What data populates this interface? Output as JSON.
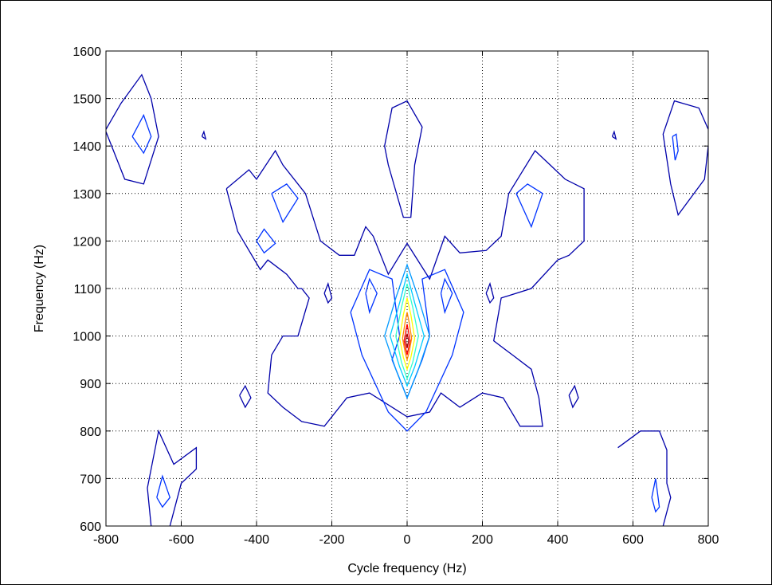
{
  "chart_data": {
    "type": "contour",
    "title": "",
    "xlabel": "Cycle frequency (Hz)",
    "ylabel": "Frequency (Hz)",
    "xlim": [
      -800,
      800
    ],
    "ylim": [
      600,
      1600
    ],
    "xticks": [
      "-800",
      "-600",
      "-400",
      "-200",
      "0",
      "200",
      "400",
      "600",
      "800"
    ],
    "yticks": [
      "600",
      "700",
      "800",
      "900",
      "1000",
      "1100",
      "1200",
      "1300",
      "1400",
      "1500",
      "1600"
    ],
    "grid": true,
    "colors": {
      "level1": "#0000aa",
      "level2": "#0033ff",
      "level3": "#0099ff",
      "level4": "#00ccff",
      "level5": "#33ffcc",
      "level6": "#ffff00",
      "level7": "#ff8800",
      "level8": "#ff0000",
      "level9": "#aa0000"
    },
    "contours": [
      {
        "level": 1,
        "color": "level1",
        "points": [
          [
            -800,
            1435
          ],
          [
            -760,
            1490
          ],
          [
            -705,
            1550
          ],
          [
            -680,
            1500
          ],
          [
            -660,
            1420
          ],
          [
            -700,
            1320
          ],
          [
            -750,
            1330
          ],
          [
            -800,
            1430
          ]
        ]
      },
      {
        "level": 2,
        "color": "level2",
        "points": [
          [
            -730,
            1420
          ],
          [
            -700,
            1465
          ],
          [
            -680,
            1420
          ],
          [
            -700,
            1385
          ],
          [
            -730,
            1420
          ]
        ]
      },
      {
        "level": 1,
        "color": "level1",
        "points": [
          [
            -545,
            1420
          ],
          [
            -540,
            1430
          ],
          [
            -535,
            1415
          ],
          [
            -545,
            1420
          ]
        ]
      },
      {
        "level": 1,
        "color": "level1",
        "points": [
          [
            545,
            1420
          ],
          [
            550,
            1430
          ],
          [
            555,
            1415
          ],
          [
            545,
            1420
          ]
        ]
      },
      {
        "level": 1,
        "color": "level1",
        "points": [
          [
            800,
            1435
          ],
          [
            775,
            1480
          ],
          [
            710,
            1495
          ],
          [
            680,
            1425
          ],
          [
            700,
            1320
          ],
          [
            720,
            1255
          ],
          [
            790,
            1330
          ],
          [
            800,
            1400
          ]
        ]
      },
      {
        "level": 2,
        "color": "level2",
        "points": [
          [
            705,
            1420
          ],
          [
            715,
            1425
          ],
          [
            720,
            1390
          ],
          [
            712,
            1370
          ],
          [
            705,
            1420
          ]
        ]
      },
      {
        "level": 1,
        "color": "level1",
        "points": [
          [
            -50,
            1360
          ],
          [
            -60,
            1400
          ],
          [
            -40,
            1480
          ],
          [
            0,
            1495
          ],
          [
            40,
            1440
          ],
          [
            20,
            1360
          ],
          [
            10,
            1250
          ],
          [
            -10,
            1250
          ],
          [
            -50,
            1360
          ]
        ]
      },
      {
        "level": 1,
        "color": "level1",
        "points": [
          [
            -480,
            1310
          ],
          [
            -420,
            1350
          ],
          [
            -400,
            1330
          ],
          [
            -350,
            1390
          ],
          [
            -330,
            1360
          ],
          [
            -270,
            1300
          ],
          [
            -230,
            1200
          ],
          [
            -180,
            1170
          ],
          [
            -140,
            1170
          ],
          [
            -110,
            1230
          ],
          [
            -90,
            1210
          ],
          [
            -50,
            1130
          ],
          [
            0,
            1195
          ],
          [
            60,
            1120
          ],
          [
            100,
            1210
          ],
          [
            140,
            1175
          ],
          [
            210,
            1180
          ],
          [
            250,
            1210
          ],
          [
            270,
            1300
          ],
          [
            340,
            1390
          ],
          [
            380,
            1360
          ],
          [
            420,
            1330
          ],
          [
            470,
            1310
          ],
          [
            470,
            1200
          ],
          [
            430,
            1170
          ],
          [
            400,
            1160
          ],
          [
            330,
            1100
          ],
          [
            250,
            1080
          ],
          [
            230,
            990
          ],
          [
            280,
            960
          ],
          [
            330,
            930
          ],
          [
            350,
            870
          ],
          [
            360,
            810
          ],
          [
            300,
            810
          ],
          [
            255,
            870
          ],
          [
            200,
            880
          ],
          [
            140,
            850
          ],
          [
            90,
            880
          ],
          [
            60,
            840
          ],
          [
            0,
            830
          ],
          [
            -60,
            860
          ],
          [
            -100,
            880
          ],
          [
            -160,
            870
          ],
          [
            -220,
            810
          ],
          [
            -280,
            820
          ],
          [
            -330,
            850
          ],
          [
            -370,
            880
          ],
          [
            -360,
            960
          ],
          [
            -330,
            1000
          ],
          [
            -290,
            1000
          ],
          [
            -260,
            1080
          ],
          [
            -280,
            1100
          ],
          [
            -290,
            1100
          ],
          [
            -320,
            1130
          ],
          [
            -370,
            1160
          ],
          [
            -390,
            1140
          ],
          [
            -450,
            1220
          ],
          [
            -480,
            1310
          ]
        ]
      },
      {
        "level": 2,
        "color": "level2",
        "points": [
          [
            -360,
            1300
          ],
          [
            -320,
            1320
          ],
          [
            -290,
            1290
          ],
          [
            -330,
            1240
          ],
          [
            -360,
            1300
          ]
        ]
      },
      {
        "level": 2,
        "color": "level2",
        "points": [
          [
            -400,
            1200
          ],
          [
            -380,
            1225
          ],
          [
            -350,
            1195
          ],
          [
            -380,
            1175
          ],
          [
            -400,
            1200
          ]
        ]
      },
      {
        "level": 2,
        "color": "level2",
        "points": [
          [
            290,
            1300
          ],
          [
            320,
            1320
          ],
          [
            360,
            1300
          ],
          [
            330,
            1230
          ],
          [
            290,
            1300
          ]
        ]
      },
      {
        "level": 1,
        "color": "level1",
        "points": [
          [
            -220,
            1090
          ],
          [
            -210,
            1110
          ],
          [
            -200,
            1080
          ],
          [
            -210,
            1070
          ],
          [
            -220,
            1090
          ]
        ]
      },
      {
        "level": 1,
        "color": "level1",
        "points": [
          [
            210,
            1090
          ],
          [
            220,
            1110
          ],
          [
            230,
            1080
          ],
          [
            220,
            1070
          ],
          [
            210,
            1090
          ]
        ]
      },
      {
        "level": 1,
        "color": "level1",
        "points": [
          [
            -445,
            875
          ],
          [
            -430,
            895
          ],
          [
            -415,
            870
          ],
          [
            -430,
            850
          ],
          [
            -445,
            875
          ]
        ]
      },
      {
        "level": 1,
        "color": "level1",
        "points": [
          [
            430,
            875
          ],
          [
            445,
            895
          ],
          [
            455,
            870
          ],
          [
            440,
            850
          ],
          [
            430,
            875
          ]
        ]
      },
      {
        "level": 1,
        "color": "level1",
        "points": [
          [
            -680,
            600
          ],
          [
            -690,
            680
          ],
          [
            -660,
            800
          ],
          [
            -620,
            730
          ],
          [
            -560,
            765
          ],
          [
            -560,
            720
          ],
          [
            -600,
            690
          ],
          [
            -630,
            600
          ]
        ]
      },
      {
        "level": 2,
        "color": "level2",
        "points": [
          [
            -665,
            660
          ],
          [
            -650,
            705
          ],
          [
            -630,
            660
          ],
          [
            -650,
            640
          ],
          [
            -665,
            660
          ]
        ]
      },
      {
        "level": 1,
        "color": "level1",
        "points": [
          [
            560,
            765
          ],
          [
            620,
            800
          ],
          [
            670,
            800
          ],
          [
            690,
            760
          ],
          [
            690,
            690
          ],
          [
            700,
            660
          ],
          [
            680,
            600
          ]
        ]
      },
      {
        "level": 2,
        "color": "level2",
        "points": [
          [
            650,
            660
          ],
          [
            660,
            700
          ],
          [
            670,
            640
          ],
          [
            660,
            630
          ],
          [
            650,
            660
          ]
        ]
      },
      {
        "level": 2,
        "color": "level2",
        "points": [
          [
            -150,
            1050
          ],
          [
            -100,
            1140
          ],
          [
            -40,
            1120
          ],
          [
            -20,
            1000
          ],
          [
            -40,
            950
          ],
          [
            0,
            870
          ],
          [
            40,
            950
          ],
          [
            60,
            1000
          ],
          [
            40,
            1120
          ],
          [
            100,
            1140
          ],
          [
            150,
            1050
          ],
          [
            120,
            960
          ],
          [
            50,
            840
          ],
          [
            0,
            800
          ],
          [
            -50,
            840
          ],
          [
            -120,
            960
          ],
          [
            -150,
            1050
          ]
        ]
      },
      {
        "level": 3,
        "color": "level2",
        "points": [
          [
            -110,
            1090
          ],
          [
            -100,
            1120
          ],
          [
            -80,
            1090
          ],
          [
            -100,
            1050
          ],
          [
            -110,
            1090
          ]
        ]
      },
      {
        "level": 3,
        "color": "level2",
        "points": [
          [
            90,
            1090
          ],
          [
            100,
            1120
          ],
          [
            120,
            1090
          ],
          [
            100,
            1050
          ],
          [
            90,
            1090
          ]
        ]
      },
      {
        "level": 3,
        "color": "level3",
        "points": [
          [
            -60,
            1000
          ],
          [
            -30,
            1080
          ],
          [
            0,
            1150
          ],
          [
            30,
            1080
          ],
          [
            60,
            1000
          ],
          [
            30,
            930
          ],
          [
            0,
            870
          ],
          [
            -30,
            930
          ],
          [
            -60,
            1000
          ]
        ]
      },
      {
        "level": 4,
        "color": "level4",
        "points": [
          [
            -45,
            1000
          ],
          [
            -20,
            1070
          ],
          [
            0,
            1130
          ],
          [
            20,
            1070
          ],
          [
            45,
            1000
          ],
          [
            20,
            935
          ],
          [
            0,
            895
          ],
          [
            -20,
            935
          ],
          [
            -45,
            1000
          ]
        ]
      },
      {
        "level": 5,
        "color": "level5",
        "points": [
          [
            -30,
            1000
          ],
          [
            -15,
            1060
          ],
          [
            0,
            1110
          ],
          [
            15,
            1060
          ],
          [
            30,
            1000
          ],
          [
            15,
            945
          ],
          [
            0,
            910
          ],
          [
            -15,
            945
          ],
          [
            -30,
            1000
          ]
        ]
      },
      {
        "level": 6,
        "color": "level6",
        "points": [
          [
            -20,
            995
          ],
          [
            -10,
            1045
          ],
          [
            0,
            1080
          ],
          [
            10,
            1045
          ],
          [
            20,
            995
          ],
          [
            10,
            955
          ],
          [
            0,
            930
          ],
          [
            -10,
            955
          ],
          [
            -20,
            995
          ]
        ]
      },
      {
        "level": 7,
        "color": "level7",
        "points": [
          [
            -12,
            995
          ],
          [
            -5,
            1030
          ],
          [
            0,
            1050
          ],
          [
            5,
            1030
          ],
          [
            12,
            995
          ],
          [
            5,
            965
          ],
          [
            0,
            950
          ],
          [
            -5,
            965
          ],
          [
            -12,
            995
          ]
        ]
      },
      {
        "level": 8,
        "color": "level8",
        "points": [
          [
            -8,
            990
          ],
          [
            0,
            1025
          ],
          [
            8,
            990
          ],
          [
            0,
            960
          ],
          [
            -8,
            990
          ]
        ]
      },
      {
        "level": 9,
        "color": "level9",
        "points": [
          [
            -4,
            990
          ],
          [
            0,
            1005
          ],
          [
            4,
            990
          ],
          [
            0,
            975
          ],
          [
            -4,
            990
          ]
        ]
      }
    ]
  }
}
